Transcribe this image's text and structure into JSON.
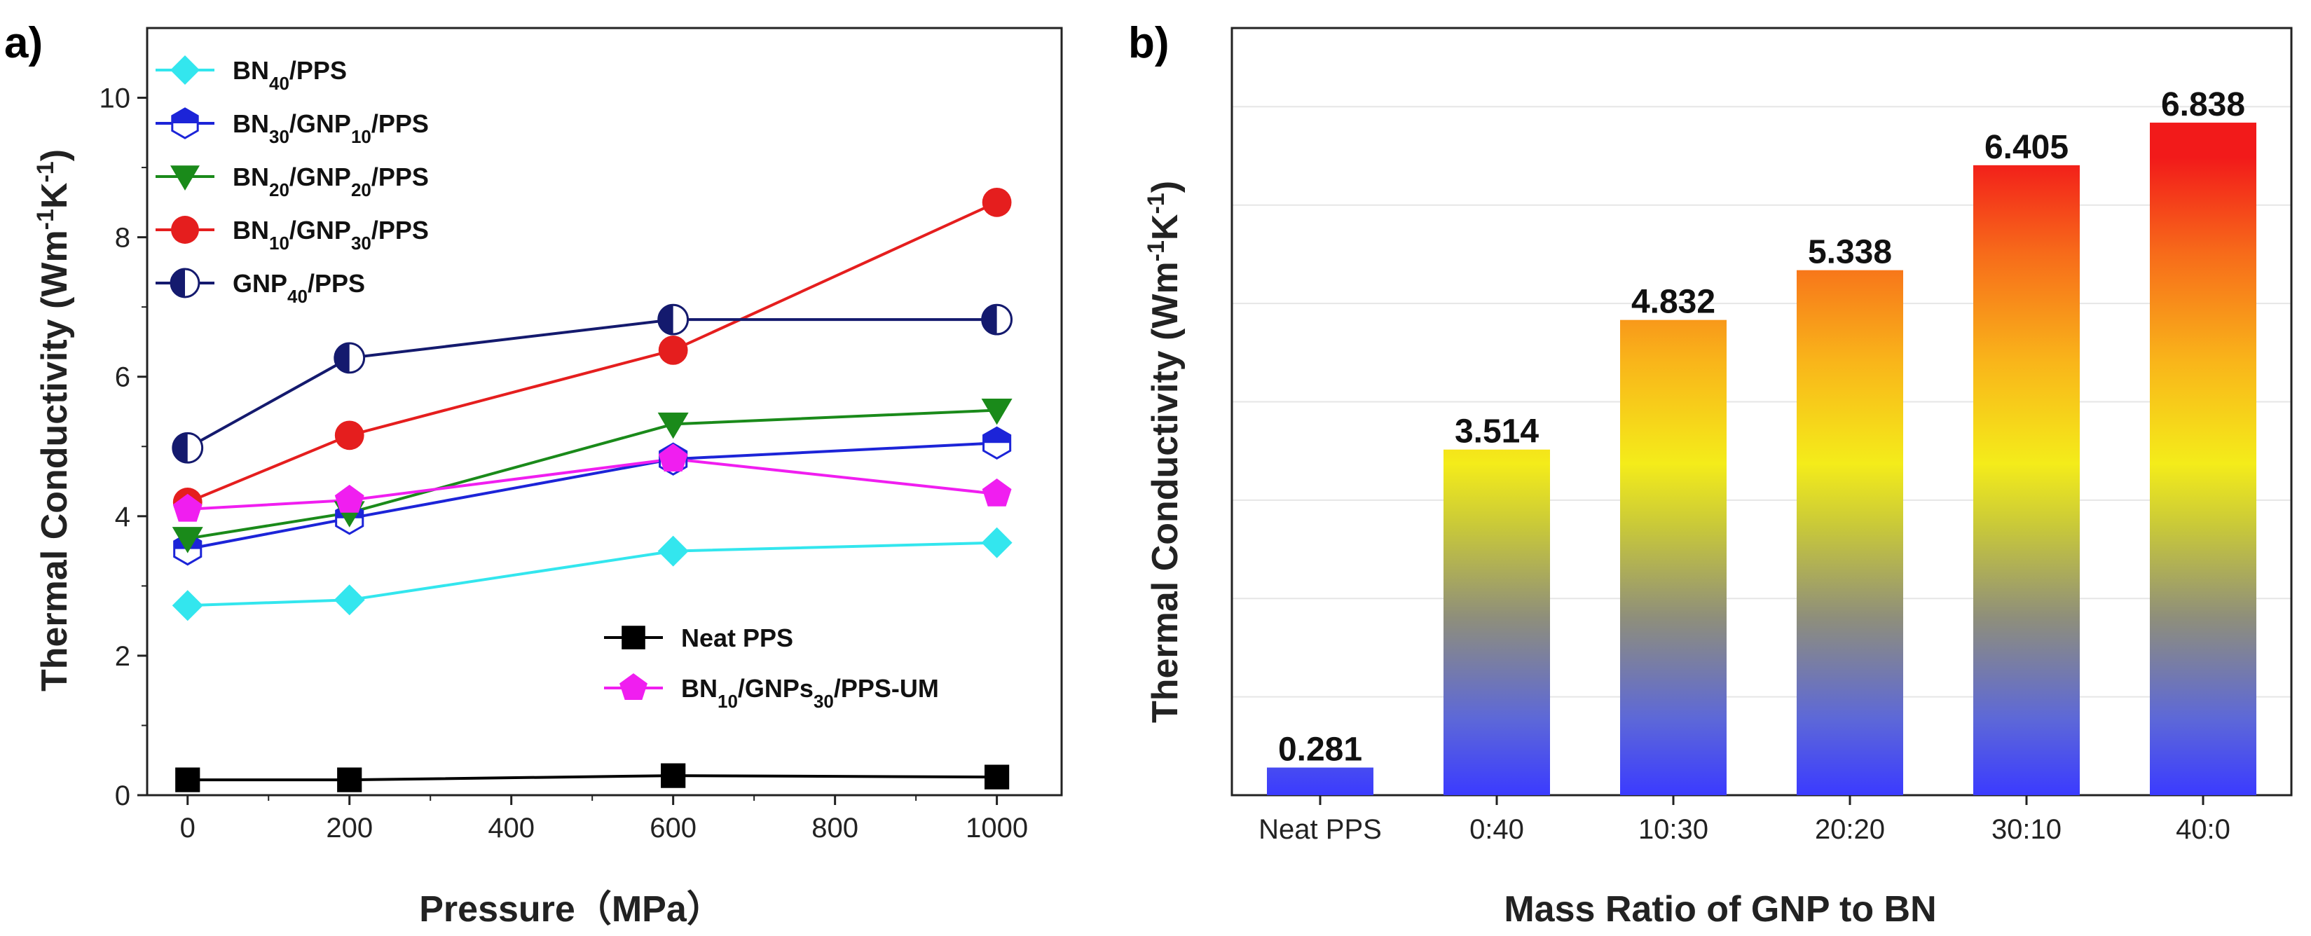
{
  "chart_data": [
    {
      "panel": "a)",
      "type": "line",
      "xlabel": "Pressure（MPa）",
      "ylabel": "Thermal Conductivity (Wm-1K-1)",
      "xlim": [
        -50,
        1080
      ],
      "ylim": [
        0,
        11
      ],
      "xticks": [
        0,
        200,
        400,
        600,
        800,
        1000
      ],
      "yticks": [
        0,
        2,
        4,
        6,
        8,
        10
      ],
      "x": [
        0,
        200,
        600,
        1000
      ],
      "series": [
        {
          "name": "BN40/PPS",
          "label_parts": [
            [
              "BN",
              ""
            ],
            [
              "40",
              "sub"
            ],
            [
              "/PPS",
              ""
            ]
          ],
          "color": "#33e6ee",
          "marker": "diamond",
          "values": [
            2.72,
            2.8,
            3.5,
            3.62
          ]
        },
        {
          "name": "BN30/GNP10/PPS",
          "label_parts": [
            [
              "BN",
              ""
            ],
            [
              "30",
              "sub"
            ],
            [
              "/GNP",
              ""
            ],
            [
              "10",
              "sub"
            ],
            [
              "/PPS",
              ""
            ]
          ],
          "color": "#1c24d8",
          "marker": "hexagon-half",
          "values": [
            3.53,
            3.97,
            4.82,
            5.05
          ]
        },
        {
          "name": "BN20/GNP20/PPS",
          "label_parts": [
            [
              "BN",
              ""
            ],
            [
              "20",
              "sub"
            ],
            [
              "/GNP",
              ""
            ],
            [
              "20",
              "sub"
            ],
            [
              "/PPS",
              ""
            ]
          ],
          "color": "#1a8a1a",
          "marker": "triangle-down",
          "values": [
            3.68,
            4.05,
            5.32,
            5.52
          ]
        },
        {
          "name": "BN10/GNP30/PPS",
          "label_parts": [
            [
              "BN",
              ""
            ],
            [
              "10",
              "sub"
            ],
            [
              "/GNP",
              ""
            ],
            [
              "30",
              "sub"
            ],
            [
              "/PPS",
              ""
            ]
          ],
          "color": "#e51e1e",
          "marker": "circle",
          "values": [
            4.2,
            5.16,
            6.38,
            8.5
          ]
        },
        {
          "name": "GNP40/PPS",
          "label_parts": [
            [
              "GNP",
              ""
            ],
            [
              "40",
              "sub"
            ],
            [
              "/PPS",
              ""
            ]
          ],
          "color": "#141a6e",
          "marker": "circle-half",
          "values": [
            4.98,
            6.27,
            6.82,
            6.82
          ]
        },
        {
          "name": "Neat PPS",
          "label_parts": [
            [
              "Neat PPS",
              ""
            ]
          ],
          "color": "#000000",
          "marker": "square",
          "values": [
            0.22,
            0.22,
            0.28,
            0.26
          ]
        },
        {
          "name": "BN10/GNPs30/PPS-UM",
          "label_parts": [
            [
              "BN",
              ""
            ],
            [
              "10",
              "sub"
            ],
            [
              "/GNPs",
              ""
            ],
            [
              "30",
              "sub"
            ],
            [
              "/PPS-UM",
              ""
            ]
          ],
          "color": "#f01ef0",
          "marker": "pentagon",
          "values": [
            4.1,
            4.23,
            4.82,
            4.32
          ]
        }
      ],
      "legend_placement": [
        "top-left (first five)",
        "bottom-right (last two)"
      ]
    },
    {
      "panel": "b)",
      "type": "bar",
      "xlabel": "Mass Ratio of GNP to BN",
      "ylabel": "Thermal Conductivity (Wm-1K-1)",
      "categories": [
        "Neat PPS",
        "0:40",
        "10:30",
        "20:20",
        "30:10",
        "40:0"
      ],
      "values": [
        0.281,
        3.514,
        4.832,
        5.338,
        6.405,
        6.838
      ],
      "value_labels": [
        "0.281",
        "3.514",
        "4.832",
        "5.338",
        "6.405",
        "6.838"
      ],
      "ylim": [
        0,
        7.8
      ],
      "grid": true,
      "fill": "vertical gradient by height: blue → gray → yellow → orange → red"
    }
  ]
}
